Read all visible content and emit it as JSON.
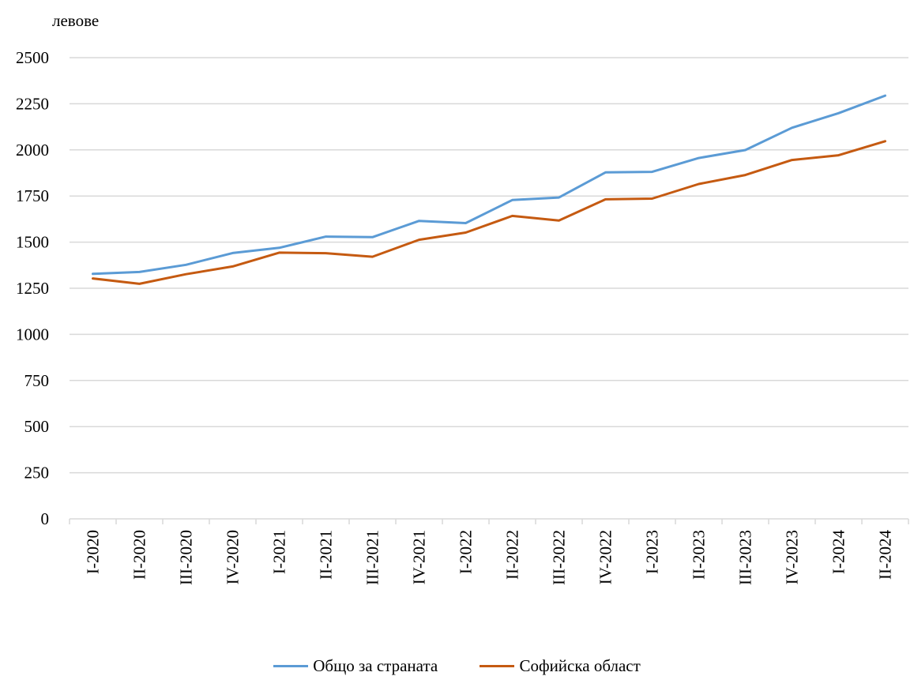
{
  "chart_data": {
    "type": "line",
    "ylabel": "левове",
    "ylim": [
      0,
      2500
    ],
    "yticks": [
      "0",
      "250",
      "500",
      "750",
      "1000",
      "1250",
      "1500",
      "1750",
      "2000",
      "2250",
      "2500"
    ],
    "grid": true,
    "legend_position": "bottom",
    "categories": [
      "I-2020",
      "II-2020",
      "III-2020",
      "IV-2020",
      "I-2021",
      "II-2021",
      "III-2021",
      "IV-2021",
      "I-2022",
      "II-2022",
      "III-2022",
      "IV-2022",
      "I-2023",
      "II-2023",
      "III-2023",
      "IV-2023",
      "I-2024",
      "II-2024"
    ],
    "series": [
      {
        "name": "Общо за страната",
        "color": "#5B9BD5",
        "values": [
          1328,
          1338,
          1377,
          1441,
          1469,
          1530,
          1527,
          1615,
          1603,
          1728,
          1742,
          1878,
          1881,
          1956,
          1999,
          2120,
          2199,
          2294
        ]
      },
      {
        "name": "Софийска област",
        "color": "#C55A11",
        "values": [
          1303,
          1274,
          1326,
          1368,
          1443,
          1440,
          1421,
          1513,
          1552,
          1642,
          1617,
          1732,
          1736,
          1815,
          1864,
          1945,
          1971,
          2047
        ]
      }
    ]
  }
}
